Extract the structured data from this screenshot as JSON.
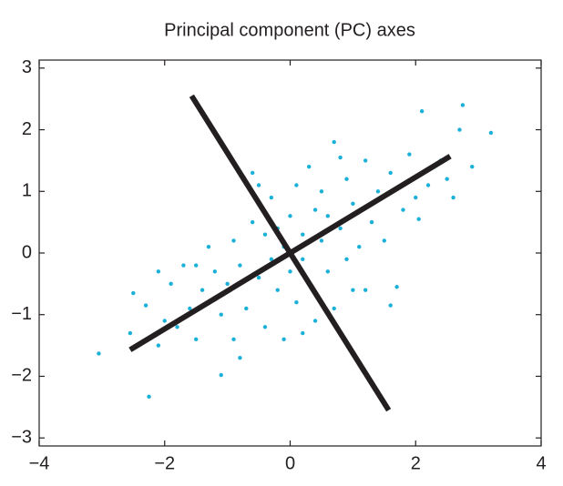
{
  "chart_data": {
    "type": "scatter",
    "title": "Principal component (PC) axes",
    "xlim": [
      -4,
      4
    ],
    "ylim": [
      -3.13,
      3.13
    ],
    "xticks": [
      {
        "value": -4,
        "label": "−4"
      },
      {
        "value": -2,
        "label": "−2"
      },
      0,
      2,
      4
    ],
    "yticks": [
      {
        "value": -3,
        "label": "−3"
      },
      {
        "value": -2,
        "label": "−2"
      },
      {
        "value": -1,
        "label": "−1"
      },
      0,
      1,
      2,
      3
    ],
    "series": [
      {
        "color": "#1bb0d8",
        "x": [
          -3.05,
          -2.25,
          -1.1,
          -2.55,
          -2.5,
          -2.3,
          -2.1,
          -2.0,
          -1.9,
          -1.8,
          -1.7,
          -1.6,
          -1.5,
          -1.4,
          -1.3,
          -1.2,
          -1.1,
          -1.0,
          -0.9,
          -0.8,
          -0.8,
          -0.7,
          -0.6,
          -0.5,
          -0.4,
          -0.4,
          -0.3,
          -0.3,
          -0.2,
          -0.2,
          -0.1,
          -0.1,
          0,
          0,
          0.1,
          0.1,
          0.2,
          0.2,
          0.3,
          0.3,
          0.4,
          0.4,
          0.5,
          0.5,
          0.6,
          0.6,
          0.7,
          0.7,
          0.8,
          0.9,
          0.9,
          1.0,
          1.1,
          1.2,
          1.2,
          1.3,
          1.4,
          1.5,
          1.6,
          1.7,
          1.8,
          1.9,
          2.0,
          2.1,
          2.2,
          2.3,
          2.4,
          2.5,
          2.6,
          2.7,
          2.75,
          2.9,
          3.2,
          2.05,
          -0.5,
          -0.6,
          -1.5,
          -2.1,
          1.6,
          0.2,
          -0.9,
          1.0,
          0.8
        ],
        "values": [
          -1.63,
          -2.33,
          -1.98,
          -1.3,
          -0.65,
          -0.85,
          -1.5,
          -1.1,
          -0.5,
          -1.2,
          -0.2,
          -0.9,
          -1.4,
          -0.6,
          0.1,
          -0.3,
          -1.0,
          -0.5,
          0.2,
          -1.7,
          -0.2,
          -0.9,
          0.5,
          -0.4,
          0.3,
          -1.2,
          -0.1,
          0.9,
          -0.6,
          0.4,
          -1.4,
          0.1,
          0.6,
          -0.3,
          1.1,
          -0.8,
          0.3,
          -0.1,
          1.4,
          -0.5,
          0.7,
          -1.1,
          0.2,
          1.0,
          -0.3,
          0.6,
          1.8,
          -0.9,
          0.4,
          1.2,
          -0.1,
          0.8,
          0.1,
          1.5,
          -0.6,
          0.5,
          1.0,
          0.2,
          1.3,
          -0.55,
          0.7,
          1.6,
          0.9,
          2.3,
          1.1,
          1.4,
          1.5,
          1.2,
          0.9,
          2.0,
          2.4,
          1.4,
          1.95,
          0.55,
          1.1,
          1.3,
          -0.2,
          -0.3,
          -0.85,
          -1.3,
          -1.4,
          -0.6,
          1.55
        ]
      }
    ],
    "lines": [
      {
        "color": "#231f20",
        "x": [
          -2.55,
          2.55
        ],
        "values": [
          -1.57,
          1.57
        ]
      },
      {
        "color": "#231f20",
        "x": [
          -1.57,
          1.57
        ],
        "values": [
          2.55,
          -2.55
        ]
      }
    ]
  }
}
